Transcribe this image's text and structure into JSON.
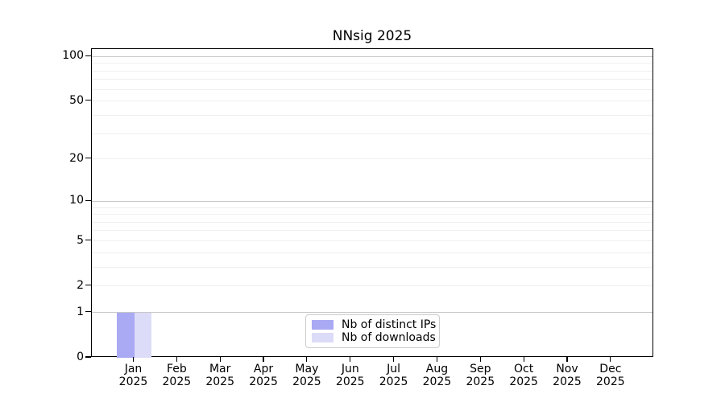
{
  "figure": {
    "title": "NNsig 2025"
  },
  "chart_data": {
    "type": "bar",
    "title": "NNsig 2025",
    "x": {
      "months": [
        "Jan",
        "Feb",
        "Mar",
        "Apr",
        "May",
        "Jun",
        "Jul",
        "Aug",
        "Sep",
        "Oct",
        "Nov",
        "Dec"
      ],
      "year": "2025"
    },
    "series": [
      {
        "name": "Nb of distinct IPs",
        "color": "#a9a9f4",
        "values": [
          1,
          0,
          0,
          0,
          0,
          0,
          0,
          0,
          0,
          0,
          0,
          0
        ]
      },
      {
        "name": "Nb of downloads",
        "color": "#dcdcf8",
        "values": [
          1,
          0,
          0,
          0,
          0,
          0,
          0,
          0,
          0,
          0,
          0,
          0
        ]
      }
    ],
    "yscale": "log1p",
    "ylim": [
      0,
      112
    ],
    "ytick_values": [
      0,
      1,
      2,
      5,
      10,
      20,
      50,
      100
    ],
    "ytick_labels": [
      "0",
      "1",
      "2",
      "5",
      "10",
      "20",
      "50",
      "100"
    ],
    "grid": {
      "orientation": "horizontal",
      "major_values": [
        1,
        10,
        100
      ],
      "minor_values": [
        2,
        3,
        4,
        5,
        6,
        7,
        8,
        9,
        20,
        30,
        40,
        50,
        60,
        70,
        80,
        90
      ]
    },
    "legend": {
      "position": "lower center",
      "entries": [
        "Nb of distinct IPs",
        "Nb of downloads"
      ]
    }
  },
  "colors": {
    "bar_distinct_ips": "#a9a9f4",
    "bar_downloads": "#dcdcf8",
    "grid_major": "#c8c8c8",
    "grid_minor": "#efefef",
    "legend_border": "#cccccc",
    "axis": "#000000",
    "background": "#ffffff"
  }
}
